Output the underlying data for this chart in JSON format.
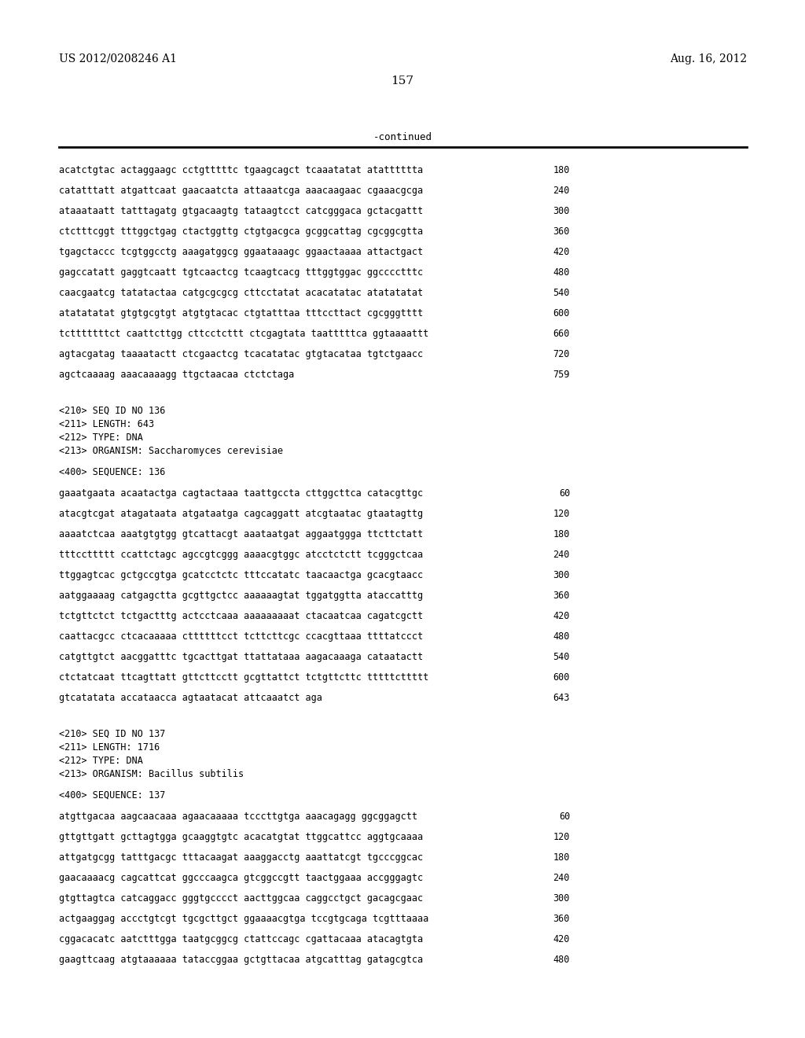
{
  "background_color": "#ffffff",
  "header_left": "US 2012/0208246 A1",
  "header_right": "Aug. 16, 2012",
  "page_number": "157",
  "continued_label": "-continued",
  "monospace_font_size": 8.5,
  "header_font_size": 10,
  "page_num_font_size": 11,
  "content": [
    {
      "type": "seq_line",
      "text": "acatctgtac actaggaagc cctgtttttc tgaagcagct tcaaatatat atatttttta",
      "num": "180"
    },
    {
      "type": "seq_line",
      "text": "catatttatt atgattcaat gaacaatcta attaaatcga aaacaagaac cgaaacgcga",
      "num": "240"
    },
    {
      "type": "seq_line",
      "text": "ataaataatt tatttagatg gtgacaagtg tataagtcct catcgggaca gctacgattt",
      "num": "300"
    },
    {
      "type": "seq_line",
      "text": "ctctttcggt tttggctgag ctactggttg ctgtgacgca gcggcattag cgcggcgtta",
      "num": "360"
    },
    {
      "type": "seq_line",
      "text": "tgagctaccc tcgtggcctg aaagatggcg ggaataaagc ggaactaaaa attactgact",
      "num": "420"
    },
    {
      "type": "seq_line",
      "text": "gagccatatt gaggtcaatt tgtcaactcg tcaagtcacg tttggtggac ggcccctttc",
      "num": "480"
    },
    {
      "type": "seq_line",
      "text": "caacgaatcg tatatactaa catgcgcgcg cttcctatat acacatatac atatatatat",
      "num": "540"
    },
    {
      "type": "seq_line",
      "text": "atatatatat gtgtgcgtgt atgtgtacac ctgtatttaa tttccttact cgcgggtttt",
      "num": "600"
    },
    {
      "type": "seq_line",
      "text": "tctttttttct caattcttgg cttcctcttt ctcgagtata taatttttca ggtaaaattt",
      "num": "660"
    },
    {
      "type": "seq_line",
      "text": "agtacgatag taaaatactt ctcgaactcg tcacatatac gtgtacataa tgtctgaacc",
      "num": "720"
    },
    {
      "type": "seq_line",
      "text": "agctcaaaag aaacaaaagg ttgctaacaa ctctctaga",
      "num": "759"
    },
    {
      "type": "blank"
    },
    {
      "type": "blank"
    },
    {
      "type": "meta",
      "text": "<210> SEQ ID NO 136"
    },
    {
      "type": "meta",
      "text": "<211> LENGTH: 643"
    },
    {
      "type": "meta",
      "text": "<212> TYPE: DNA"
    },
    {
      "type": "meta",
      "text": "<213> ORGANISM: Saccharomyces cerevisiae"
    },
    {
      "type": "blank"
    },
    {
      "type": "meta",
      "text": "<400> SEQUENCE: 136"
    },
    {
      "type": "blank"
    },
    {
      "type": "seq_line",
      "text": "gaaatgaata acaatactga cagtactaaa taattgccta cttggcttca catacgttgc",
      "num": "60"
    },
    {
      "type": "seq_line",
      "text": "atacgtcgat atagataata atgataatga cagcaggatt atcgtaatac gtaatagttg",
      "num": "120"
    },
    {
      "type": "seq_line",
      "text": "aaaatctcaa aaatgtgtgg gtcattacgt aaataatgat aggaatggga ttcttctatt",
      "num": "180"
    },
    {
      "type": "seq_line",
      "text": "tttccttttt ccattctagc agccgtcggg aaaacgtggc atcctctctt tcgggctcaa",
      "num": "240"
    },
    {
      "type": "seq_line",
      "text": "ttggagtcac gctgccgtga gcatcctctc tttccatatc taacaactga gcacgtaacc",
      "num": "300"
    },
    {
      "type": "seq_line",
      "text": "aatggaaaag catgagctta gcgttgctcc aaaaaagtat tggatggtta ataccatttg",
      "num": "360"
    },
    {
      "type": "seq_line",
      "text": "tctgttctct tctgactttg actcctcaaa aaaaaaaaat ctacaatcaa cagatcgctt",
      "num": "420"
    },
    {
      "type": "seq_line",
      "text": "caattacgcc ctcacaaaaa cttttttcct tcttcttcgc ccacgttaaa ttttatccct",
      "num": "480"
    },
    {
      "type": "seq_line",
      "text": "catgttgtct aacggatttc tgcacttgat ttattataaa aagacaaaga cataatactt",
      "num": "540"
    },
    {
      "type": "seq_line",
      "text": "ctctatcaat ttcagttatt gttcttcctt gcgttattct tctgttcttc tttttcttttt",
      "num": "600"
    },
    {
      "type": "seq_line",
      "text": "gtcatatata accataacca agtaatacat attcaaatct aga",
      "num": "643"
    },
    {
      "type": "blank"
    },
    {
      "type": "blank"
    },
    {
      "type": "meta",
      "text": "<210> SEQ ID NO 137"
    },
    {
      "type": "meta",
      "text": "<211> LENGTH: 1716"
    },
    {
      "type": "meta",
      "text": "<212> TYPE: DNA"
    },
    {
      "type": "meta",
      "text": "<213> ORGANISM: Bacillus subtilis"
    },
    {
      "type": "blank"
    },
    {
      "type": "meta",
      "text": "<400> SEQUENCE: 137"
    },
    {
      "type": "blank"
    },
    {
      "type": "seq_line",
      "text": "atgttgacaa aagcaacaaa agaacaaaaa tcccttgtga aaacagagg ggcggagctt",
      "num": "60"
    },
    {
      "type": "seq_line",
      "text": "gttgttgatt gcttagtgga gcaaggtgtc acacatgtat ttggcattcc aggtgcaaaa",
      "num": "120"
    },
    {
      "type": "seq_line",
      "text": "attgatgcgg tatttgacgc tttacaagat aaaggacctg aaattatcgt tgcccggcac",
      "num": "180"
    },
    {
      "type": "seq_line",
      "text": "gaacaaaacg cagcattcat ggcccaagca gtcggccgtt taactggaaa accgggagtc",
      "num": "240"
    },
    {
      "type": "seq_line",
      "text": "gtgttagtca catcaggacc gggtgcccct aacttggcaa caggcctgct gacagcgaac",
      "num": "300"
    },
    {
      "type": "seq_line",
      "text": "actgaaggag accctgtcgt tgcgcttgct ggaaaacgtga tccgtgcaga tcgtttaaaa",
      "num": "360"
    },
    {
      "type": "seq_line",
      "text": "cggacacatc aatctttgga taatgcggcg ctattccagc cgattacaaa atacagtgta",
      "num": "420"
    },
    {
      "type": "seq_line",
      "text": "gaagttcaag atgtaaaaaa tataccggaa gctgttacaa atgcatttag gatagcgtca",
      "num": "480"
    }
  ]
}
